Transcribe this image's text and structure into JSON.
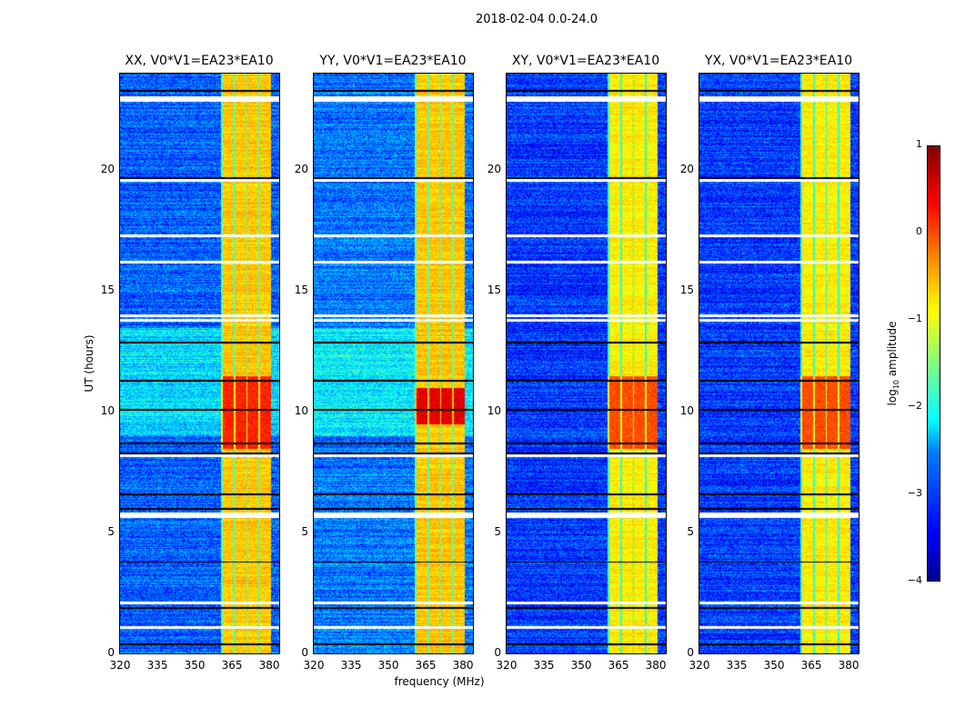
{
  "chart_data": {
    "type": "heatmap",
    "title": "2018-02-04 0.0-24.0",
    "xlabel": "frequency (MHz)",
    "ylabel": "UT (hours)",
    "xlim": [
      320,
      384
    ],
    "ylim": [
      0,
      24
    ],
    "xticks": [
      "320",
      "335",
      "350",
      "365",
      "380"
    ],
    "yticks": [
      "0",
      "5",
      "10",
      "15",
      "20"
    ],
    "panels": [
      {
        "title": "XX, V0*V1=EA23*EA10",
        "background_level": -2.9,
        "band_level": -0.6,
        "peak_hours": [
          8.5,
          11.5
        ],
        "peak_level": 0.3
      },
      {
        "title": "YY, V0*V1=EA23*EA10",
        "background_level": -2.8,
        "band_level": -0.6,
        "peak_hours": [
          9.5,
          11.0
        ],
        "peak_level": 0.6
      },
      {
        "title": "XY, V0*V1=EA23*EA10",
        "background_level": -3.1,
        "band_level": -0.8,
        "peak_hours": [
          8.5,
          11.5
        ],
        "peak_level": 0.1
      },
      {
        "title": "YX, V0*V1=EA23*EA10",
        "background_level": -3.1,
        "band_level": -0.8,
        "peak_hours": [
          8.5,
          11.5
        ],
        "peak_level": 0.1
      }
    ],
    "band_mhz": [
      360.5,
      380.5
    ],
    "flagged_hours": [
      23.0,
      22.9,
      19.6,
      17.3,
      16.2,
      14.0,
      13.8,
      8.2,
      5.8,
      5.7,
      2.1,
      1.1
    ],
    "black_line_hours": [
      23.3,
      19.7,
      12.9,
      11.3,
      10.1,
      8.7,
      8.3,
      6.6,
      6.0,
      3.8,
      1.9,
      0.4
    ],
    "colorbar": {
      "label": "log10 amplitude",
      "label_base": "log",
      "label_sub": "10",
      "label_rest": " amplitude",
      "range": [
        -4,
        1
      ],
      "ticks": [
        "1",
        "0",
        "−1",
        "−2",
        "−3",
        "−4"
      ],
      "colormap": "jet"
    }
  }
}
